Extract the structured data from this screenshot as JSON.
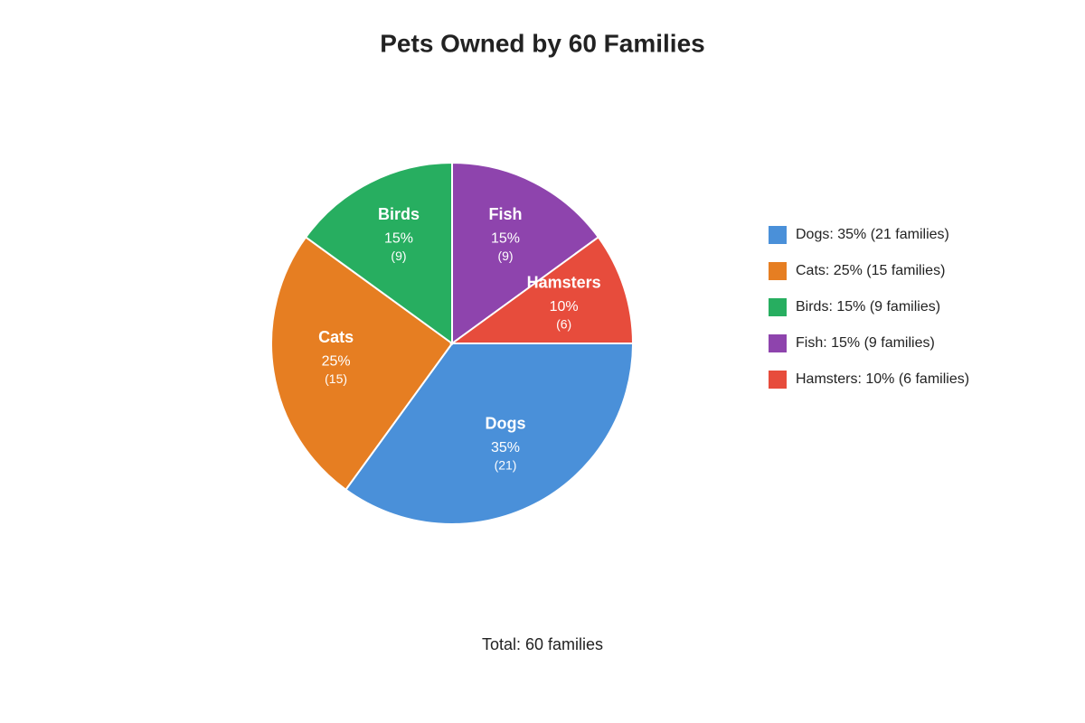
{
  "chart_data": {
    "type": "pie",
    "title": "Pets Owned by 60 Families",
    "categories": [
      "Dogs",
      "Cats",
      "Birds",
      "Fish",
      "Hamsters"
    ],
    "values": [
      35,
      25,
      15,
      15,
      10
    ],
    "value_labels": [
      "35%",
      "25%",
      "15%",
      "15%",
      "10%"
    ],
    "counts": [
      21,
      15,
      9,
      9,
      6
    ],
    "count_labels": [
      "(21)",
      "(15)",
      "(9)",
      "(9)",
      "(6)"
    ],
    "colors": [
      "#4a90d9",
      "#e67e22",
      "#27ae60",
      "#8e44ad",
      "#e74c3c"
    ],
    "legend_labels": [
      "Dogs: 35% (21 families)",
      "Cats: 25% (15 families)",
      "Birds: 15% (9 families)",
      "Fish: 15% (9 families)",
      "Hamsters: 10% (6 families)"
    ],
    "legend_position": "right",
    "note": "Total: 60 families"
  }
}
